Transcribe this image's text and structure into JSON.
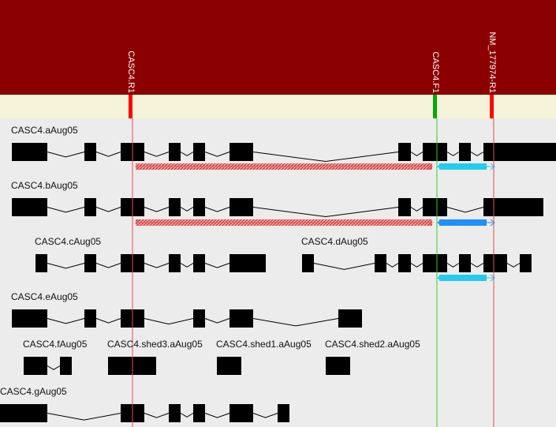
{
  "colors": {
    "header_bg": "#8b0000",
    "track_bg": "#f5f3d9",
    "canvas_bg": "#ececec",
    "exon": "#000000",
    "intron": "#000000",
    "primer_reverse": "#ff0000",
    "primer_forward": "#00aa00",
    "guide_reverse": "#e05050",
    "guide_forward": "#33cc33",
    "product_hatched": "#e06060",
    "product_cyan": "#22ccee",
    "product_blue": "#1e90ff"
  },
  "primers": [
    {
      "name": "CASC4.R1",
      "type": "reverse"
    },
    {
      "name": "CASC4.F1",
      "type": "forward"
    },
    {
      "name": "NM_177974-R1",
      "type": "reverse"
    }
  ],
  "transcripts": [
    {
      "name": "CASC4.aAug05"
    },
    {
      "name": "CASC4.bAug05"
    },
    {
      "name": "CASC4.cAug05"
    },
    {
      "name": "CASC4.dAug05"
    },
    {
      "name": "CASC4.eAug05"
    },
    {
      "name": "CASC4.fAug05"
    },
    {
      "name": "CASC4.shed3.aAug05"
    },
    {
      "name": "CASC4.shed1.aAug05"
    },
    {
      "name": "CASC4.shed2.aAug05"
    },
    {
      "name": "CASC4.gAug05"
    }
  ],
  "products": [
    {
      "transcript": "CASC4.aAug05",
      "style": "hatched"
    },
    {
      "transcript": "CASC4.aAug05",
      "style": "cyan"
    },
    {
      "transcript": "CASC4.bAug05",
      "style": "hatched"
    },
    {
      "transcript": "CASC4.bAug05",
      "style": "blue"
    },
    {
      "transcript": "CASC4.dAug05",
      "style": "cyan"
    }
  ]
}
